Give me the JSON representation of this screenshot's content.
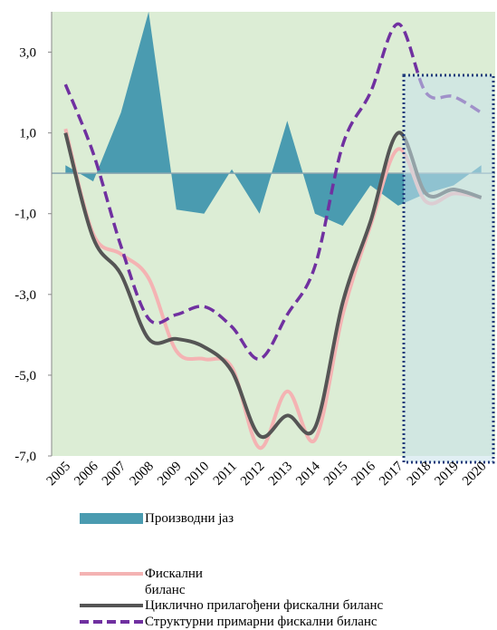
{
  "chart_data": {
    "type": "mixed",
    "categories": [
      "2005",
      "2006",
      "2007",
      "2008",
      "2009",
      "2010",
      "2011",
      "2012",
      "2013",
      "2014",
      "2015",
      "2016",
      "2017",
      "2018",
      "2019",
      "2020"
    ],
    "ylim": [
      -7,
      4
    ],
    "yticks": [
      {
        "value": -7,
        "label": "-7,0"
      },
      {
        "value": -5,
        "label": "-5,0"
      },
      {
        "value": -3,
        "label": "-3,0"
      },
      {
        "value": -1,
        "label": "-1,0"
      },
      {
        "value": 1,
        "label": "1,0"
      },
      {
        "value": 3,
        "label": "3,0"
      }
    ],
    "series": [
      {
        "name": "Производни јаз",
        "kind": "area",
        "color": "#4a9bb0",
        "values": [
          0.2,
          -0.2,
          1.5,
          4.0,
          -0.9,
          -1.0,
          0.1,
          -1.0,
          1.3,
          -1.0,
          -1.3,
          -0.3,
          -0.8,
          -0.5,
          -0.3,
          0.2
        ]
      },
      {
        "name": "Фискални биланс",
        "kind": "line",
        "color": "#f4b3b3",
        "values": [
          1.1,
          -1.5,
          -2.0,
          -2.6,
          -4.4,
          -4.6,
          -4.8,
          -6.8,
          -5.4,
          -6.6,
          -3.5,
          -1.3,
          0.6,
          -0.7,
          -0.5,
          -0.6
        ]
      },
      {
        "name": "Циклично прилагођени  фискални биланс",
        "kind": "line",
        "color": "#555555",
        "values": [
          1.0,
          -1.6,
          -2.5,
          -4.1,
          -4.1,
          -4.3,
          -4.9,
          -6.5,
          -6.0,
          -6.3,
          -3.2,
          -1.2,
          1.0,
          -0.5,
          -0.4,
          -0.6
        ]
      },
      {
        "name": "Структурни примарни фискални биланс",
        "kind": "dashed",
        "color": "#7030a0",
        "values": [
          2.2,
          0.5,
          -1.8,
          -3.6,
          -3.5,
          -3.3,
          -3.8,
          -4.6,
          -3.5,
          -2.3,
          0.7,
          2.0,
          3.7,
          2.0,
          1.9,
          1.5
        ]
      }
    ]
  }
}
